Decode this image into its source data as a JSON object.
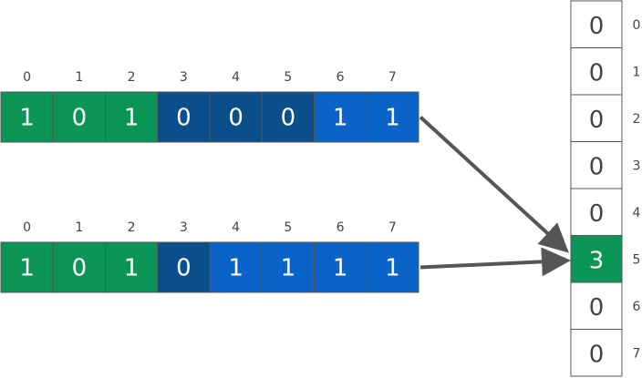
{
  "colors": {
    "green": "#0a9455",
    "dark_blue": "#0b4f8a",
    "blue": "#0a64c8",
    "arrow": "#555555",
    "cell_border": "#555555"
  },
  "rows": [
    {
      "indices": [
        "0",
        "1",
        "2",
        "3",
        "4",
        "5",
        "6",
        "7"
      ],
      "bits": [
        "1",
        "0",
        "1",
        "0",
        "0",
        "0",
        "1",
        "1"
      ],
      "cell_colors": [
        "green",
        "green",
        "green",
        "dark_blue",
        "dark_blue",
        "dark_blue",
        "blue",
        "blue"
      ]
    },
    {
      "indices": [
        "0",
        "1",
        "2",
        "3",
        "4",
        "5",
        "6",
        "7"
      ],
      "bits": [
        "1",
        "0",
        "1",
        "0",
        "1",
        "1",
        "1",
        "1"
      ],
      "cell_colors": [
        "green",
        "green",
        "green",
        "dark_blue",
        "blue",
        "blue",
        "blue",
        "blue"
      ]
    }
  ],
  "register": {
    "indices": [
      "0",
      "1",
      "2",
      "3",
      "4",
      "5",
      "6",
      "7"
    ],
    "values": [
      "0",
      "0",
      "0",
      "0",
      "0",
      "3",
      "0",
      "0"
    ],
    "highlight_index": 5,
    "highlight_color": "green"
  },
  "arrows": [
    {
      "from_row": 0,
      "to_index": 5
    },
    {
      "from_row": 1,
      "to_index": 5
    }
  ]
}
